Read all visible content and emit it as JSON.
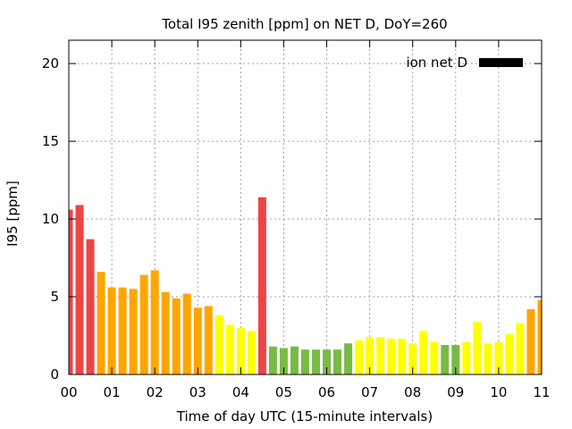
{
  "chart_data": {
    "type": "bar",
    "title": "Total I95 zenith [ppm] on NET D, DoY=260",
    "xlabel": "Time of day UTC (15-minute intervals)",
    "ylabel": "I95 [ppm]",
    "xlim": [
      0,
      11
    ],
    "ylim": [
      0,
      21.5
    ],
    "xticks": [
      "00",
      "01",
      "02",
      "03",
      "04",
      "05",
      "06",
      "07",
      "08",
      "09",
      "10",
      "11"
    ],
    "yticks": [
      0,
      5,
      10,
      15,
      20
    ],
    "grid": true,
    "legend": {
      "placement": "top-right",
      "entries": [
        {
          "label": "ion net D",
          "color": "#000000"
        }
      ]
    },
    "colors": {
      "red": "#ee4444",
      "orange": "#ffa500",
      "yellow": "#ffff00",
      "green": "#77bb44"
    },
    "bars": [
      {
        "t": 0.0,
        "value": 10.6,
        "color": "red"
      },
      {
        "t": 0.25,
        "value": 10.9,
        "color": "red"
      },
      {
        "t": 0.5,
        "value": 8.7,
        "color": "red"
      },
      {
        "t": 0.75,
        "value": 6.6,
        "color": "orange"
      },
      {
        "t": 1.0,
        "value": 5.6,
        "color": "orange"
      },
      {
        "t": 1.25,
        "value": 5.6,
        "color": "orange"
      },
      {
        "t": 1.5,
        "value": 5.5,
        "color": "orange"
      },
      {
        "t": 1.75,
        "value": 6.4,
        "color": "orange"
      },
      {
        "t": 2.0,
        "value": 6.7,
        "color": "orange"
      },
      {
        "t": 2.25,
        "value": 5.3,
        "color": "orange"
      },
      {
        "t": 2.5,
        "value": 4.9,
        "color": "orange"
      },
      {
        "t": 2.75,
        "value": 5.2,
        "color": "orange"
      },
      {
        "t": 3.0,
        "value": 4.3,
        "color": "orange"
      },
      {
        "t": 3.25,
        "value": 4.4,
        "color": "orange"
      },
      {
        "t": 3.5,
        "value": 3.8,
        "color": "yellow"
      },
      {
        "t": 3.75,
        "value": 3.2,
        "color": "yellow"
      },
      {
        "t": 4.0,
        "value": 3.0,
        "color": "yellow"
      },
      {
        "t": 4.25,
        "value": 2.8,
        "color": "yellow"
      },
      {
        "t": 4.5,
        "value": 11.4,
        "color": "red"
      },
      {
        "t": 4.75,
        "value": 1.8,
        "color": "green"
      },
      {
        "t": 5.0,
        "value": 1.7,
        "color": "green"
      },
      {
        "t": 5.25,
        "value": 1.8,
        "color": "green"
      },
      {
        "t": 5.5,
        "value": 1.6,
        "color": "green"
      },
      {
        "t": 5.75,
        "value": 1.6,
        "color": "green"
      },
      {
        "t": 6.0,
        "value": 1.6,
        "color": "green"
      },
      {
        "t": 6.25,
        "value": 1.6,
        "color": "green"
      },
      {
        "t": 6.5,
        "value": 2.0,
        "color": "green"
      },
      {
        "t": 6.75,
        "value": 2.2,
        "color": "yellow"
      },
      {
        "t": 7.0,
        "value": 2.4,
        "color": "yellow"
      },
      {
        "t": 7.25,
        "value": 2.4,
        "color": "yellow"
      },
      {
        "t": 7.5,
        "value": 2.3,
        "color": "yellow"
      },
      {
        "t": 7.75,
        "value": 2.3,
        "color": "yellow"
      },
      {
        "t": 8.0,
        "value": 2.0,
        "color": "yellow"
      },
      {
        "t": 8.25,
        "value": 2.8,
        "color": "yellow"
      },
      {
        "t": 8.5,
        "value": 2.1,
        "color": "yellow"
      },
      {
        "t": 8.75,
        "value": 1.9,
        "color": "green"
      },
      {
        "t": 9.0,
        "value": 1.9,
        "color": "green"
      },
      {
        "t": 9.25,
        "value": 2.1,
        "color": "yellow"
      },
      {
        "t": 9.5,
        "value": 3.4,
        "color": "yellow"
      },
      {
        "t": 9.75,
        "value": 2.0,
        "color": "yellow"
      },
      {
        "t": 10.0,
        "value": 2.1,
        "color": "yellow"
      },
      {
        "t": 10.25,
        "value": 2.6,
        "color": "yellow"
      },
      {
        "t": 10.5,
        "value": 3.3,
        "color": "yellow"
      },
      {
        "t": 10.75,
        "value": 4.2,
        "color": "orange"
      },
      {
        "t": 11.0,
        "value": 4.8,
        "color": "orange"
      }
    ]
  }
}
